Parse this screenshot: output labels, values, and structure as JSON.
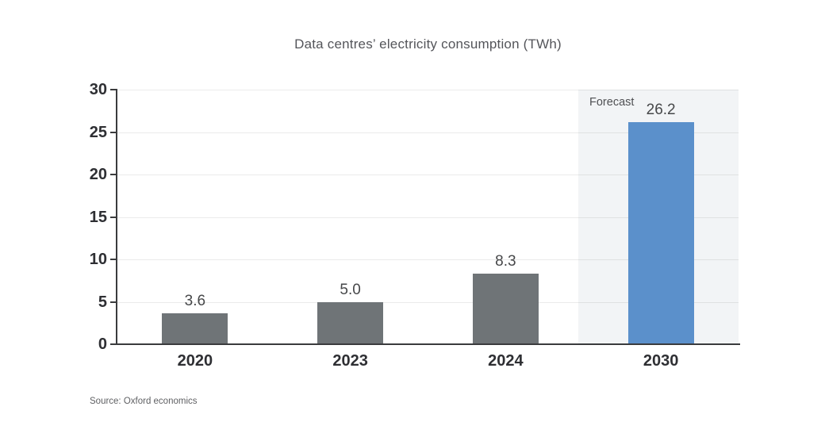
{
  "header": {
    "title": "Data centres’ electricity consumption (TWh)"
  },
  "footer": {
    "source": "Source: Oxford economics"
  },
  "chart_data": {
    "type": "bar",
    "title": "Data centres’ electricity consumption (TWh)",
    "categories": [
      "2020",
      "2023",
      "2024",
      "2030"
    ],
    "values": [
      3.6,
      5.0,
      8.3,
      26.2
    ],
    "value_labels": [
      "3.6",
      "5.0",
      "8.3",
      "26.2"
    ],
    "xlabel": "",
    "ylabel": "",
    "ylim": [
      0,
      30
    ],
    "yticks": [
      0,
      5,
      10,
      15,
      20,
      25,
      30
    ],
    "grid": true,
    "legend": false,
    "annotation": {
      "label": "Forecast",
      "category": "2030",
      "note": "last category sits on a shaded forecast region"
    },
    "colors": {
      "bar": "#6f7477",
      "forecast_bar": "#5b90cb",
      "forecast_region": "#f2f4f6",
      "axis": "#3a3b3d",
      "title_text": "#54555a",
      "tick_text": "#2e2f33",
      "value_text": "#464749",
      "source_text": "#5f6063"
    },
    "source": "Source: Oxford economics"
  }
}
